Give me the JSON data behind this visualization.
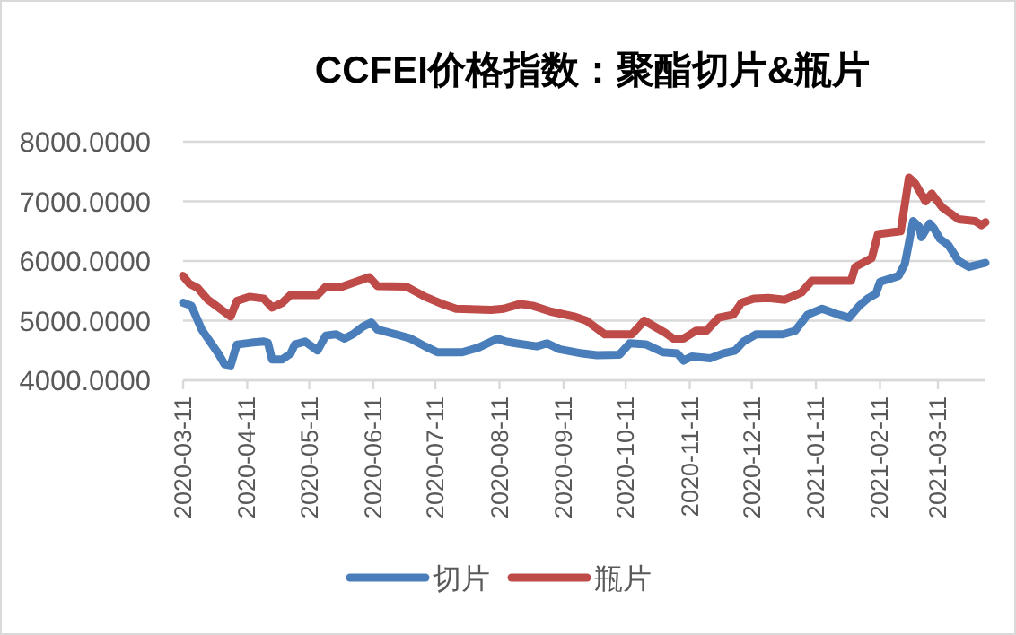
{
  "chart_data": {
    "type": "line",
    "title": "CCFEI价格指数：聚酯切片&瓶片",
    "xlim": [
      "2020-03-11",
      "2021-04-03"
    ],
    "xticks": [
      {
        "value": "2020-03-11",
        "label": "2020-03-11"
      },
      {
        "value": "2020-04-11",
        "label": "2020-04-11"
      },
      {
        "value": "2020-05-11",
        "label": "2020-05-11"
      },
      {
        "value": "2020-06-11",
        "label": "2020-06-11"
      },
      {
        "value": "2020-07-11",
        "label": "2020-07-11"
      },
      {
        "value": "2020-08-11",
        "label": "2020-08-11"
      },
      {
        "value": "2020-09-11",
        "label": "2020-09-11"
      },
      {
        "value": "2020-10-11",
        "label": "2020-10-11"
      },
      {
        "value": "2020-11-11",
        "label": "2020-11-11"
      },
      {
        "value": "2020-12-11",
        "label": "2020-12-11"
      },
      {
        "value": "2021-01-11",
        "label": "2021-01-11"
      },
      {
        "value": "2021-02-11",
        "label": "2021-02-11"
      },
      {
        "value": "2021-03-11",
        "label": "2021-03-11"
      }
    ],
    "ylim": [
      4000,
      8000
    ],
    "yticks": [
      {
        "value": 4000,
        "label": "4000.0000"
      },
      {
        "value": 5000,
        "label": "5000.0000"
      },
      {
        "value": 6000,
        "label": "6000.0000"
      },
      {
        "value": 7000,
        "label": "7000.0000"
      },
      {
        "value": 8000,
        "label": "8000.0000"
      }
    ],
    "grid": "y",
    "legend": "bottom",
    "marker": "none",
    "line_style": "solid",
    "series": [
      {
        "name": "切片",
        "color": "#4a7ebb",
        "x": [
          "2020-03-11",
          "2020-03-15",
          "2020-03-20",
          "2020-03-23",
          "2020-03-28",
          "2020-03-31",
          "2020-04-03",
          "2020-04-06",
          "2020-04-13",
          "2020-04-19",
          "2020-04-21",
          "2020-04-23",
          "2020-04-28",
          "2020-05-02",
          "2020-05-04",
          "2020-05-09",
          "2020-05-15",
          "2020-05-19",
          "2020-05-24",
          "2020-05-28",
          "2020-06-01",
          "2020-06-06",
          "2020-06-10",
          "2020-06-13",
          "2020-06-22",
          "2020-06-29",
          "2020-07-06",
          "2020-07-12",
          "2020-07-24",
          "2020-08-01",
          "2020-08-10",
          "2020-08-14",
          "2020-08-19",
          "2020-08-29",
          "2020-09-03",
          "2020-09-09",
          "2020-09-20",
          "2020-09-27",
          "2020-10-08",
          "2020-10-13",
          "2020-10-21",
          "2020-10-29",
          "2020-11-05",
          "2020-11-08",
          "2020-11-12",
          "2020-11-21",
          "2020-11-27",
          "2020-12-03",
          "2020-12-07",
          "2020-12-13",
          "2020-12-20",
          "2020-12-26",
          "2021-01-01",
          "2021-01-07",
          "2021-01-14",
          "2021-01-22",
          "2021-01-27",
          "2021-02-01",
          "2021-02-05",
          "2021-02-09",
          "2021-02-11",
          "2021-02-20",
          "2021-02-23",
          "2021-02-27",
          "2021-03-02",
          "2021-03-03",
          "2021-03-07",
          "2021-03-09",
          "2021-03-12",
          "2021-03-16",
          "2021-03-21",
          "2021-03-26",
          "2021-04-03"
        ],
        "values": [
          5300,
          5250,
          4850,
          4700,
          4450,
          4270,
          4250,
          4600,
          4630,
          4650,
          4630,
          4350,
          4350,
          4450,
          4600,
          4650,
          4500,
          4750,
          4770,
          4700,
          4770,
          4900,
          4970,
          4850,
          4770,
          4700,
          4570,
          4470,
          4470,
          4550,
          4700,
          4650,
          4620,
          4570,
          4620,
          4520,
          4450,
          4420,
          4430,
          4620,
          4600,
          4470,
          4450,
          4330,
          4400,
          4370,
          4450,
          4500,
          4650,
          4770,
          4770,
          4770,
          4830,
          5100,
          5200,
          5100,
          5050,
          5250,
          5370,
          5450,
          5650,
          5750,
          5950,
          6670,
          6570,
          6400,
          6630,
          6550,
          6370,
          6270,
          6000,
          5900,
          5970
        ]
      },
      {
        "name": "瓶片",
        "color": "#be4b48",
        "x": [
          "2020-03-11",
          "2020-03-14",
          "2020-03-18",
          "2020-03-23",
          "2020-03-30",
          "2020-04-03",
          "2020-04-06",
          "2020-04-12",
          "2020-04-19",
          "2020-04-23",
          "2020-04-28",
          "2020-05-02",
          "2020-05-15",
          "2020-05-19",
          "2020-05-27",
          "2020-06-04",
          "2020-06-09",
          "2020-06-13",
          "2020-06-27",
          "2020-07-06",
          "2020-07-15",
          "2020-07-21",
          "2020-08-07",
          "2020-08-13",
          "2020-08-21",
          "2020-08-27",
          "2020-09-05",
          "2020-09-16",
          "2020-09-22",
          "2020-10-01",
          "2020-10-14",
          "2020-10-20",
          "2020-10-30",
          "2020-11-03",
          "2020-11-08",
          "2020-11-14",
          "2020-11-19",
          "2020-11-25",
          "2020-12-02",
          "2020-12-06",
          "2020-12-12",
          "2020-12-19",
          "2020-12-27",
          "2021-01-04",
          "2021-01-09",
          "2021-01-28",
          "2021-01-30",
          "2021-02-07",
          "2021-02-10",
          "2021-02-21",
          "2021-02-25",
          "2021-02-28",
          "2021-03-05",
          "2021-03-08",
          "2021-03-13",
          "2021-03-21",
          "2021-03-29",
          "2021-04-01",
          "2021-04-03"
        ],
        "values": [
          5750,
          5620,
          5550,
          5350,
          5170,
          5070,
          5330,
          5400,
          5370,
          5220,
          5300,
          5430,
          5430,
          5570,
          5570,
          5670,
          5730,
          5580,
          5570,
          5400,
          5270,
          5200,
          5180,
          5200,
          5280,
          5250,
          5150,
          5070,
          5000,
          4770,
          4770,
          5000,
          4800,
          4700,
          4700,
          4830,
          4830,
          5050,
          5100,
          5300,
          5370,
          5380,
          5350,
          5470,
          5670,
          5670,
          5900,
          6050,
          6450,
          6500,
          7400,
          7300,
          7000,
          7130,
          6900,
          6700,
          6670,
          6600,
          6650
        ]
      }
    ]
  }
}
